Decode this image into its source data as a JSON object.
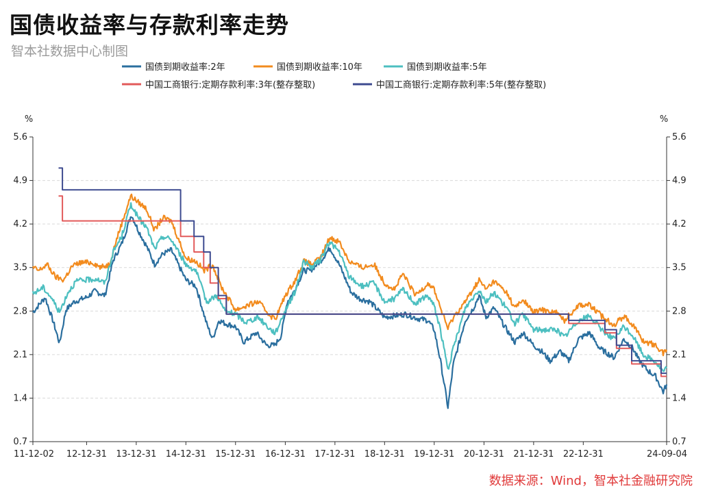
{
  "title": "国债收益率与存款利率走势",
  "subtitle": "智本社数据中心制图",
  "source": "数据来源：Wind，智本社金融研究院",
  "chart_data": {
    "type": "line",
    "y_unit_left": "%",
    "y_unit_right": "%",
    "ylim": [
      0.7,
      5.6
    ],
    "yticks": [
      "0.7",
      "1.4",
      "2.1",
      "2.8",
      "3.5",
      "4.2",
      "4.9",
      "5.6"
    ],
    "xlim": [
      "2011-12-02",
      "2024-09-04"
    ],
    "xticks": [
      {
        "label": "11-12-02",
        "date": "2011-12-02"
      },
      {
        "label": "12-12-31",
        "date": "2012-12-31"
      },
      {
        "label": "13-12-31",
        "date": "2013-12-31"
      },
      {
        "label": "14-12-31",
        "date": "2014-12-31"
      },
      {
        "label": "15-12-31",
        "date": "2015-12-31"
      },
      {
        "label": "16-12-31",
        "date": "2016-12-31"
      },
      {
        "label": "17-12-31",
        "date": "2017-12-31"
      },
      {
        "label": "18-12-31",
        "date": "2018-12-31"
      },
      {
        "label": "19-12-31",
        "date": "2019-12-31"
      },
      {
        "label": "20-12-31",
        "date": "2020-12-31"
      },
      {
        "label": "21-12-31",
        "date": "2021-12-31"
      },
      {
        "label": "22-12-31",
        "date": "2022-12-31"
      },
      {
        "label": "24-09-04",
        "date": "2024-09-04"
      }
    ],
    "grid": "horizontal dashed",
    "legend_position": "top",
    "series": [
      {
        "name": "国债到期收益率:2年",
        "color": "#2a6e9e",
        "style": "line",
        "points": [
          [
            "2011-12-02",
            2.78
          ],
          [
            "2012-03-01",
            3.02
          ],
          [
            "2012-05-01",
            2.62
          ],
          [
            "2012-06-15",
            2.28
          ],
          [
            "2012-08-01",
            2.82
          ],
          [
            "2012-10-01",
            2.95
          ],
          [
            "2012-12-31",
            3.02
          ],
          [
            "2013-03-01",
            3.12
          ],
          [
            "2013-05-15",
            3.05
          ],
          [
            "2013-07-15",
            3.62
          ],
          [
            "2013-09-15",
            3.88
          ],
          [
            "2013-11-25",
            4.35
          ],
          [
            "2014-01-15",
            4.1
          ],
          [
            "2014-03-15",
            3.85
          ],
          [
            "2014-05-15",
            3.55
          ],
          [
            "2014-07-15",
            3.72
          ],
          [
            "2014-09-15",
            3.78
          ],
          [
            "2014-10-20",
            3.62
          ],
          [
            "2014-12-31",
            3.3
          ],
          [
            "2015-03-15",
            3.2
          ],
          [
            "2015-06-01",
            2.6
          ],
          [
            "2015-07-15",
            2.35
          ],
          [
            "2015-08-31",
            2.65
          ],
          [
            "2015-10-15",
            2.6
          ],
          [
            "2015-12-31",
            2.55
          ],
          [
            "2016-03-01",
            2.3
          ],
          [
            "2016-06-01",
            2.45
          ],
          [
            "2016-08-15",
            2.25
          ],
          [
            "2016-10-15",
            2.25
          ],
          [
            "2016-11-30",
            2.4
          ],
          [
            "2017-01-15",
            2.95
          ],
          [
            "2017-03-01",
            3.1
          ],
          [
            "2017-05-15",
            3.45
          ],
          [
            "2017-07-01",
            3.45
          ],
          [
            "2017-09-15",
            3.6
          ],
          [
            "2017-11-25",
            3.82
          ],
          [
            "2018-01-31",
            3.55
          ],
          [
            "2018-04-30",
            3.1
          ],
          [
            "2018-07-01",
            3.0
          ],
          [
            "2018-09-15",
            2.95
          ],
          [
            "2018-12-31",
            2.7
          ],
          [
            "2019-03-01",
            2.72
          ],
          [
            "2019-06-01",
            2.75
          ],
          [
            "2019-09-01",
            2.68
          ],
          [
            "2019-11-15",
            2.65
          ],
          [
            "2019-12-31",
            2.5
          ],
          [
            "2020-02-15",
            2.0
          ],
          [
            "2020-04-10",
            1.25
          ],
          [
            "2020-05-20",
            1.95
          ],
          [
            "2020-08-15",
            2.65
          ],
          [
            "2020-10-15",
            2.85
          ],
          [
            "2020-11-25",
            3.05
          ],
          [
            "2021-01-15",
            2.7
          ],
          [
            "2021-03-15",
            2.85
          ],
          [
            "2021-06-01",
            2.55
          ],
          [
            "2021-08-15",
            2.3
          ],
          [
            "2021-10-15",
            2.45
          ],
          [
            "2021-12-31",
            2.25
          ],
          [
            "2022-03-01",
            2.15
          ],
          [
            "2022-05-01",
            2.0
          ],
          [
            "2022-07-15",
            2.15
          ],
          [
            "2022-09-15",
            2.0
          ],
          [
            "2022-11-25",
            2.35
          ],
          [
            "2023-02-15",
            2.45
          ],
          [
            "2023-05-01",
            2.2
          ],
          [
            "2023-08-15",
            2.05
          ],
          [
            "2023-10-25",
            2.35
          ],
          [
            "2023-12-31",
            2.2
          ],
          [
            "2024-02-15",
            2.0
          ],
          [
            "2024-04-15",
            1.85
          ],
          [
            "2024-06-15",
            1.75
          ],
          [
            "2024-08-10",
            1.5
          ],
          [
            "2024-09-04",
            1.62
          ]
        ]
      },
      {
        "name": "国债到期收益率:10年",
        "color": "#f28b1e",
        "style": "line",
        "points": [
          [
            "2011-12-02",
            3.5
          ],
          [
            "2012-01-15",
            3.45
          ],
          [
            "2012-03-15",
            3.55
          ],
          [
            "2012-05-15",
            3.35
          ],
          [
            "2012-07-15",
            3.3
          ],
          [
            "2012-09-15",
            3.52
          ],
          [
            "2012-11-15",
            3.58
          ],
          [
            "2013-02-15",
            3.58
          ],
          [
            "2013-04-15",
            3.5
          ],
          [
            "2013-06-15",
            3.55
          ],
          [
            "2013-08-15",
            4.0
          ],
          [
            "2013-11-20",
            4.65
          ],
          [
            "2014-01-15",
            4.55
          ],
          [
            "2014-03-15",
            4.45
          ],
          [
            "2014-05-15",
            4.1
          ],
          [
            "2014-07-15",
            4.3
          ],
          [
            "2014-09-15",
            4.25
          ],
          [
            "2014-12-31",
            3.65
          ],
          [
            "2015-03-15",
            3.6
          ],
          [
            "2015-05-15",
            3.45
          ],
          [
            "2015-07-15",
            3.55
          ],
          [
            "2015-09-15",
            3.2
          ],
          [
            "2015-12-31",
            2.82
          ],
          [
            "2016-03-15",
            2.88
          ],
          [
            "2016-06-15",
            2.95
          ],
          [
            "2016-09-15",
            2.72
          ],
          [
            "2016-10-20",
            2.68
          ],
          [
            "2016-12-31",
            3.05
          ],
          [
            "2017-03-15",
            3.3
          ],
          [
            "2017-05-15",
            3.6
          ],
          [
            "2017-07-15",
            3.55
          ],
          [
            "2017-09-15",
            3.65
          ],
          [
            "2017-11-22",
            3.98
          ],
          [
            "2018-01-31",
            3.92
          ],
          [
            "2018-04-15",
            3.6
          ],
          [
            "2018-07-15",
            3.5
          ],
          [
            "2018-10-15",
            3.55
          ],
          [
            "2018-12-31",
            3.25
          ],
          [
            "2019-03-15",
            3.15
          ],
          [
            "2019-05-15",
            3.4
          ],
          [
            "2019-08-15",
            3.05
          ],
          [
            "2019-11-15",
            3.25
          ],
          [
            "2019-12-31",
            3.15
          ],
          [
            "2020-02-15",
            2.85
          ],
          [
            "2020-04-10",
            2.52
          ],
          [
            "2020-05-20",
            2.7
          ],
          [
            "2020-08-15",
            2.95
          ],
          [
            "2020-11-25",
            3.3
          ],
          [
            "2021-01-15",
            3.15
          ],
          [
            "2021-03-15",
            3.28
          ],
          [
            "2021-06-15",
            3.1
          ],
          [
            "2021-08-15",
            2.85
          ],
          [
            "2021-10-15",
            2.98
          ],
          [
            "2021-12-31",
            2.78
          ],
          [
            "2022-03-01",
            2.82
          ],
          [
            "2022-06-15",
            2.78
          ],
          [
            "2022-08-15",
            2.65
          ],
          [
            "2022-11-25",
            2.9
          ],
          [
            "2023-02-15",
            2.9
          ],
          [
            "2023-05-15",
            2.72
          ],
          [
            "2023-08-15",
            2.58
          ],
          [
            "2023-10-25",
            2.72
          ],
          [
            "2023-12-31",
            2.58
          ],
          [
            "2024-03-15",
            2.32
          ],
          [
            "2024-06-15",
            2.25
          ],
          [
            "2024-08-10",
            2.12
          ],
          [
            "2024-09-04",
            2.18
          ]
        ]
      },
      {
        "name": "国债到期收益率:5年",
        "color": "#4cbfc0",
        "style": "line",
        "points": [
          [
            "2011-12-02",
            3.08
          ],
          [
            "2012-02-15",
            3.18
          ],
          [
            "2012-04-15",
            3.02
          ],
          [
            "2012-06-15",
            2.78
          ],
          [
            "2012-08-15",
            3.1
          ],
          [
            "2012-10-15",
            3.28
          ],
          [
            "2012-12-31",
            3.3
          ],
          [
            "2013-03-15",
            3.32
          ],
          [
            "2013-05-15",
            3.25
          ],
          [
            "2013-07-15",
            3.75
          ],
          [
            "2013-09-15",
            4.0
          ],
          [
            "2013-11-22",
            4.52
          ],
          [
            "2014-01-15",
            4.3
          ],
          [
            "2014-03-15",
            4.15
          ],
          [
            "2014-05-15",
            3.8
          ],
          [
            "2014-07-15",
            4.0
          ],
          [
            "2014-09-15",
            3.95
          ],
          [
            "2014-12-31",
            3.55
          ],
          [
            "2015-03-15",
            3.45
          ],
          [
            "2015-06-01",
            2.95
          ],
          [
            "2015-08-15",
            3.05
          ],
          [
            "2015-10-15",
            2.8
          ],
          [
            "2015-12-31",
            2.75
          ],
          [
            "2016-03-15",
            2.62
          ],
          [
            "2016-06-15",
            2.7
          ],
          [
            "2016-09-15",
            2.5
          ],
          [
            "2016-10-20",
            2.45
          ],
          [
            "2016-12-31",
            2.82
          ],
          [
            "2017-03-15",
            3.12
          ],
          [
            "2017-05-15",
            3.6
          ],
          [
            "2017-07-15",
            3.5
          ],
          [
            "2017-09-15",
            3.62
          ],
          [
            "2017-11-22",
            3.92
          ],
          [
            "2018-01-31",
            3.75
          ],
          [
            "2018-04-15",
            3.35
          ],
          [
            "2018-07-15",
            3.2
          ],
          [
            "2018-10-15",
            3.25
          ],
          [
            "2018-12-31",
            2.95
          ],
          [
            "2019-03-15",
            3.0
          ],
          [
            "2019-05-15",
            3.15
          ],
          [
            "2019-08-15",
            2.92
          ],
          [
            "2019-11-15",
            3.05
          ],
          [
            "2019-12-31",
            2.88
          ],
          [
            "2020-02-15",
            2.5
          ],
          [
            "2020-04-10",
            1.85
          ],
          [
            "2020-05-20",
            2.2
          ],
          [
            "2020-08-15",
            2.85
          ],
          [
            "2020-11-25",
            3.15
          ],
          [
            "2021-01-15",
            2.95
          ],
          [
            "2021-03-15",
            3.1
          ],
          [
            "2021-06-15",
            2.85
          ],
          [
            "2021-08-15",
            2.6
          ],
          [
            "2021-10-15",
            2.75
          ],
          [
            "2021-12-31",
            2.5
          ],
          [
            "2022-03-01",
            2.5
          ],
          [
            "2022-06-15",
            2.5
          ],
          [
            "2022-08-15",
            2.38
          ],
          [
            "2022-11-25",
            2.65
          ],
          [
            "2023-02-15",
            2.72
          ],
          [
            "2023-05-15",
            2.5
          ],
          [
            "2023-08-15",
            2.35
          ],
          [
            "2023-10-25",
            2.55
          ],
          [
            "2023-12-31",
            2.4
          ],
          [
            "2024-03-15",
            2.1
          ],
          [
            "2024-06-15",
            1.98
          ],
          [
            "2024-08-10",
            1.82
          ],
          [
            "2024-09-04",
            1.88
          ]
        ]
      },
      {
        "name": "中国工商银行:定期存款利率:3年(整存整取)",
        "color": "#e25a5a",
        "style": "step",
        "points": [
          [
            "2012-06-08",
            4.65
          ],
          [
            "2012-07-06",
            4.25
          ],
          [
            "2014-11-22",
            4.0
          ],
          [
            "2015-03-01",
            3.75
          ],
          [
            "2015-05-11",
            3.5
          ],
          [
            "2015-06-28",
            3.25
          ],
          [
            "2015-08-26",
            3.0
          ],
          [
            "2015-10-24",
            2.75
          ],
          [
            "2022-09-15",
            2.6
          ],
          [
            "2022-12-01",
            2.6
          ],
          [
            "2023-06-08",
            2.45
          ],
          [
            "2023-09-01",
            2.2
          ],
          [
            "2023-12-22",
            1.95
          ],
          [
            "2024-07-25",
            1.75
          ],
          [
            "2024-09-04",
            1.75
          ]
        ]
      },
      {
        "name": "中国工商银行:定期存款利率:5年(整存整取)",
        "color": "#3d4a8f",
        "style": "step",
        "points": [
          [
            "2012-06-08",
            5.1
          ],
          [
            "2012-07-06",
            4.75
          ],
          [
            "2014-11-22",
            4.25
          ],
          [
            "2015-03-01",
            4.0
          ],
          [
            "2015-05-11",
            3.75
          ],
          [
            "2015-06-28",
            3.5
          ],
          [
            "2015-08-26",
            3.05
          ],
          [
            "2015-10-24",
            2.75
          ],
          [
            "2022-09-15",
            2.65
          ],
          [
            "2022-12-01",
            2.65
          ],
          [
            "2023-06-08",
            2.5
          ],
          [
            "2023-09-01",
            2.25
          ],
          [
            "2023-12-22",
            2.0
          ],
          [
            "2024-07-25",
            1.8
          ],
          [
            "2024-09-04",
            1.8
          ]
        ]
      }
    ]
  }
}
